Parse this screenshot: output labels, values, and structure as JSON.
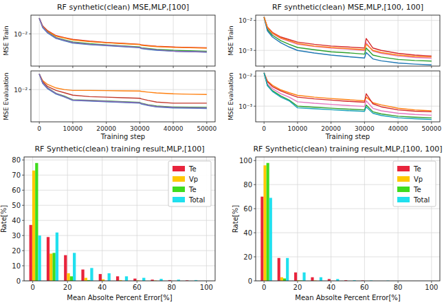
{
  "chart_data": [
    {
      "type": "line",
      "title": "RF synthetic(clean) MSE,MLP,[100]",
      "y_label": "MSE Train",
      "log": "y",
      "grid": true,
      "tick_labels": "y",
      "x": [
        0,
        1000,
        2500,
        5000,
        7500,
        10000,
        15000,
        20000,
        25000,
        30000,
        30500,
        32500,
        35000,
        40000,
        45000,
        50000
      ],
      "xlim": [
        -2500,
        52500
      ],
      "xticks": [
        0,
        10000,
        20000,
        30000,
        40000,
        50000
      ],
      "ylim": [
        0.0015,
        0.03
      ],
      "yticks": [
        {
          "value": 0.01,
          "label": "10⁻²"
        }
      ],
      "series": [
        {
          "color": "#d62728",
          "values": [
            0.025,
            0.016,
            0.012,
            0.009,
            0.008,
            0.0072,
            0.0065,
            0.006,
            0.0057,
            0.0054,
            0.0052,
            0.005,
            0.0048,
            0.0046,
            0.0045,
            0.0044
          ]
        },
        {
          "color": "#ff7f0e",
          "values": [
            0.025,
            0.0155,
            0.0115,
            0.0087,
            0.0078,
            0.007,
            0.0063,
            0.0059,
            0.0056,
            0.0053,
            0.0051,
            0.0049,
            0.0047,
            0.0045,
            0.0044,
            0.0043
          ]
        },
        {
          "color": "#2ca02c",
          "values": [
            0.025,
            0.015,
            0.011,
            0.008,
            0.007,
            0.0062,
            0.0056,
            0.0052,
            0.0049,
            0.0046,
            0.0044,
            0.0042,
            0.004,
            0.0038,
            0.0037,
            0.0036
          ]
        },
        {
          "color": "#1f77b4",
          "values": [
            0.025,
            0.0145,
            0.0105,
            0.0076,
            0.0066,
            0.0058,
            0.0053,
            0.005,
            0.0047,
            0.0044,
            0.0042,
            0.004,
            0.0038,
            0.0036,
            0.0035,
            0.0034
          ]
        },
        {
          "color": "#9467bd",
          "values": [
            0.025,
            0.015,
            0.0108,
            0.0078,
            0.0068,
            0.006,
            0.0054,
            0.0051,
            0.0048,
            0.0045,
            0.0043,
            0.0041,
            0.0039,
            0.0036,
            0.0035,
            0.00345
          ]
        }
      ]
    },
    {
      "type": "line",
      "y_label": "MSE Evaluation",
      "x_label": "Training step",
      "log": "y",
      "grid": true,
      "x": [
        0,
        1000,
        2500,
        5000,
        7500,
        10000,
        15000,
        20000,
        25000,
        30000,
        30500,
        32500,
        35000,
        40000,
        45000,
        50000
      ],
      "xlim": [
        -2500,
        52500
      ],
      "xticks": [
        0,
        10000,
        20000,
        30000,
        40000,
        50000
      ],
      "ylim": [
        0.0015,
        0.03
      ],
      "yticks": [
        {
          "value": 0.01,
          "label": "10⁻²"
        }
      ],
      "series": [
        {
          "color": "#ff7f0e",
          "values": [
            0.025,
            0.017,
            0.0135,
            0.011,
            0.01,
            0.0095,
            0.0095,
            0.0094,
            0.0093,
            0.0092,
            0.009,
            0.0086,
            0.0082,
            0.0078,
            0.0076,
            0.0075
          ]
        },
        {
          "color": "#c1392b",
          "values": [
            0.025,
            0.016,
            0.012,
            0.0095,
            0.0083,
            0.0072,
            0.0066,
            0.0064,
            0.0062,
            0.006,
            0.0058,
            0.0053,
            0.0048,
            0.0045,
            0.0045,
            0.0045
          ]
        },
        {
          "color": "#2ca02c",
          "values": [
            0.025,
            0.015,
            0.011,
            0.008,
            0.0068,
            0.0055,
            0.0053,
            0.0051,
            0.0049,
            0.0047,
            0.0045,
            0.0041,
            0.0038,
            0.0036,
            0.00355,
            0.0035
          ]
        },
        {
          "color": "#1f77b4",
          "values": [
            0.025,
            0.0145,
            0.0105,
            0.0077,
            0.0065,
            0.0053,
            0.0051,
            0.0049,
            0.0047,
            0.0045,
            0.0043,
            0.0039,
            0.0036,
            0.0034,
            0.00335,
            0.0033
          ]
        },
        {
          "color": "#9467bd",
          "values": [
            0.025,
            0.015,
            0.0108,
            0.0079,
            0.0066,
            0.0054,
            0.0052,
            0.005,
            0.0048,
            0.0046,
            0.0044,
            0.004,
            0.0037,
            0.0035,
            0.00345,
            0.0034
          ]
        }
      ]
    },
    {
      "type": "line",
      "title": "RF synthetic(clean) MSE,MLP,[100, 100]",
      "y_label": "MSE Train",
      "log": "y",
      "grid": true,
      "tick_labels": "y",
      "x": [
        0,
        1000,
        2500,
        5000,
        7500,
        10000,
        15000,
        20000,
        25000,
        30000,
        30500,
        32500,
        35000,
        40000,
        45000,
        50000
      ],
      "xlim": [
        -2500,
        52500
      ],
      "xticks": [
        0,
        10000,
        20000,
        30000,
        40000,
        50000
      ],
      "ylim": [
        0.0003,
        0.015
      ],
      "yticks": [
        {
          "value": 0.01,
          "label": "10⁻²"
        },
        {
          "value": 0.001,
          "label": "10⁻³"
        }
      ],
      "series": [
        {
          "color": "#d62728",
          "values": [
            0.013,
            0.006,
            0.004,
            0.0028,
            0.0023,
            0.0019,
            0.0016,
            0.0014,
            0.0013,
            0.0012,
            0.0025,
            0.0012,
            0.001,
            0.0008,
            0.0007,
            0.00065
          ]
        },
        {
          "color": "#e377c2",
          "values": [
            0.013,
            0.0055,
            0.0036,
            0.0025,
            0.002,
            0.0016,
            0.00135,
            0.0012,
            0.0011,
            0.001,
            0.0018,
            0.00095,
            0.0008,
            0.00065,
            0.00058,
            0.00055
          ]
        },
        {
          "color": "#2ca02c",
          "values": [
            0.013,
            0.005,
            0.0032,
            0.0021,
            0.0016,
            0.00125,
            0.00105,
            0.0009,
            0.00083,
            0.00075,
            0.0012,
            0.0007,
            0.0006,
            0.0005,
            0.00046,
            0.00044
          ]
        },
        {
          "color": "#1f77b4",
          "values": [
            0.013,
            0.0045,
            0.0028,
            0.0018,
            0.0013,
            0.001,
            0.00082,
            0.0007,
            0.00062,
            0.00056,
            0.00085,
            0.00052,
            0.00045,
            0.00038,
            0.00035,
            0.00033
          ]
        },
        {
          "color": "#ff7f0e",
          "values": [
            0.013,
            0.0058,
            0.0038,
            0.0026,
            0.0021,
            0.0017,
            0.0014,
            0.00125,
            0.00115,
            0.00105,
            0.0016,
            0.001,
            0.00085,
            0.0007,
            0.00063,
            0.0006
          ]
        }
      ]
    },
    {
      "type": "line",
      "y_label": "MSE Evaluation",
      "x_label": "Training step",
      "log": "y",
      "grid": true,
      "x": [
        0,
        1000,
        2500,
        5000,
        7500,
        10000,
        15000,
        20000,
        25000,
        30000,
        30500,
        32500,
        35000,
        40000,
        45000,
        50000
      ],
      "xlim": [
        -2500,
        52500
      ],
      "xticks": [
        0,
        10000,
        20000,
        30000,
        40000,
        50000
      ],
      "ylim": [
        0.0003,
        0.015
      ],
      "yticks": [
        {
          "value": 0.01,
          "label": "10⁻²"
        },
        {
          "value": 0.001,
          "label": "10⁻³"
        }
      ],
      "series": [
        {
          "color": "#ff7f0e",
          "values": [
            0.013,
            0.007,
            0.005,
            0.0035,
            0.0028,
            0.0023,
            0.002,
            0.0018,
            0.00165,
            0.0015,
            0.002,
            0.0013,
            0.0011,
            0.00085,
            0.00075,
            0.0007
          ]
        },
        {
          "color": "#d62728",
          "values": [
            0.013,
            0.0065,
            0.0045,
            0.0032,
            0.0025,
            0.002,
            0.00175,
            0.0016,
            0.00145,
            0.00135,
            0.0026,
            0.0012,
            0.00095,
            0.00075,
            0.00068,
            0.00065
          ]
        },
        {
          "color": "#e377c2",
          "values": [
            0.013,
            0.0055,
            0.0038,
            0.0026,
            0.002,
            0.0014,
            0.00125,
            0.00115,
            0.00105,
            0.00098,
            0.0015,
            0.00085,
            0.0007,
            0.00058,
            0.00053,
            0.0005
          ]
        },
        {
          "color": "#2ca02c",
          "values": [
            0.013,
            0.005,
            0.0033,
            0.0022,
            0.0016,
            0.001,
            0.00092,
            0.00086,
            0.0008,
            0.00075,
            0.0011,
            0.00065,
            0.00055,
            0.00046,
            0.00043,
            0.00041
          ]
        },
        {
          "color": "#17a2b8",
          "values": [
            0.013,
            0.0048,
            0.0031,
            0.002,
            0.0015,
            0.00088,
            0.00082,
            0.00076,
            0.00071,
            0.00067,
            0.00095,
            0.00058,
            0.00049,
            0.00041,
            0.00038,
            0.00036
          ]
        }
      ]
    },
    {
      "type": "histogram",
      "title": "RF Synthetic(clean) training result,MLP,[100]",
      "x_label": "Mean Absolte Percent Error[%]",
      "y_label": "Rate[%]",
      "grid": true,
      "legend": "upper right",
      "bins": [
        0,
        10,
        20,
        30,
        40,
        50,
        60,
        70,
        80,
        90,
        100
      ],
      "xlim": [
        -5,
        105
      ],
      "xticks": [
        0,
        20,
        40,
        60,
        80,
        100
      ],
      "ylim": [
        0,
        82
      ],
      "yticks": [
        0,
        10,
        20,
        30,
        40,
        50,
        60,
        70,
        80
      ],
      "series": [
        {
          "name": "Te",
          "color": "#e8243c",
          "values": [
            37,
            29,
            17,
            7.5,
            4.5,
            3,
            1.5,
            0.8,
            0.5,
            0.3
          ]
        },
        {
          "name": "Vp",
          "color": "#ffc800",
          "values": [
            73,
            18,
            5,
            2,
            1,
            0.5,
            0.3,
            0.2,
            0,
            0
          ]
        },
        {
          "name": "Te",
          "color": "#3fdc1e",
          "values": [
            78,
            18.5,
            3,
            0.5,
            0,
            0,
            0,
            0,
            0,
            0
          ]
        },
        {
          "name": "Total",
          "color": "#20e0ee",
          "values": [
            30,
            32,
            18.5,
            8.5,
            5,
            3,
            2,
            1.3,
            0.8,
            0.5
          ]
        }
      ]
    },
    {
      "type": "histogram",
      "title": "RF Synthetic(clean) training result,MLP,[100, 100]",
      "x_label": "Mean Absolte Percent Error[%]",
      "y_label": "Rate[%]",
      "grid": true,
      "legend": "upper right",
      "bins": [
        0,
        10,
        20,
        30,
        40,
        50,
        60,
        70,
        80,
        90,
        100
      ],
      "xlim": [
        -5,
        105
      ],
      "xticks": [
        0,
        20,
        40,
        60,
        80,
        100
      ],
      "ylim": [
        0,
        103
      ],
      "yticks": [
        0,
        20,
        40,
        60,
        80,
        100
      ],
      "series": [
        {
          "name": "Te",
          "color": "#e8243c",
          "values": [
            70,
            19,
            7,
            3,
            1.5,
            0.5,
            0.3,
            0,
            0,
            0
          ]
        },
        {
          "name": "Vp",
          "color": "#ffc800",
          "values": [
            96,
            3,
            0.5,
            0.3,
            0,
            0,
            0,
            0,
            0,
            0
          ]
        },
        {
          "name": "Te",
          "color": "#3fdc1e",
          "values": [
            98,
            2,
            0.3,
            0,
            0,
            0,
            0,
            0,
            0,
            0
          ]
        },
        {
          "name": "Total",
          "color": "#20e0ee",
          "values": [
            69,
            19,
            7,
            3,
            1.5,
            0.5,
            0.3,
            0.2,
            0,
            0
          ]
        }
      ]
    }
  ]
}
